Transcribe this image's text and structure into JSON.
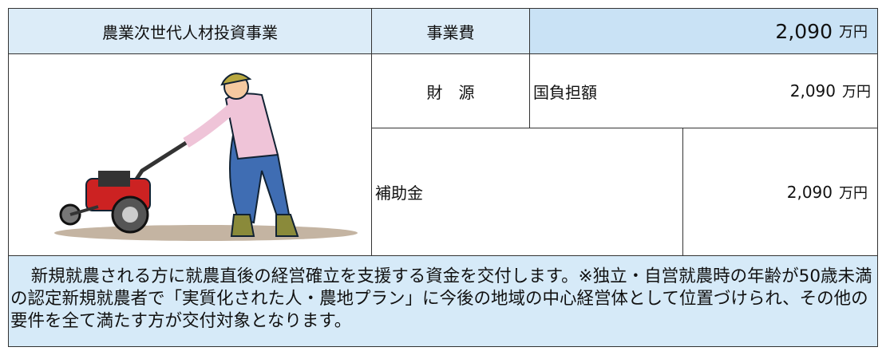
{
  "program": {
    "name": "農業次世代人材投資事業",
    "cost_label": "事業費",
    "cost_amount": "2,090",
    "cost_unit": "万円"
  },
  "funding": {
    "label": "財　源",
    "national_label": "国負担額",
    "national_amount": "2,090",
    "national_unit": "万円"
  },
  "subsidy": {
    "label": "補助金",
    "amount": "2,090",
    "unit": "万円"
  },
  "description": "新規就農される方に就農直後の経営確立を支援する資金を交付します。※独立・自営就農時の年齢が50歳未満の認定新規就農者で「実質化された人・農地プラン」に今後の地域の中心経営体として位置づけられ、その他の要件を全て満たす方が交付対象となります。"
}
